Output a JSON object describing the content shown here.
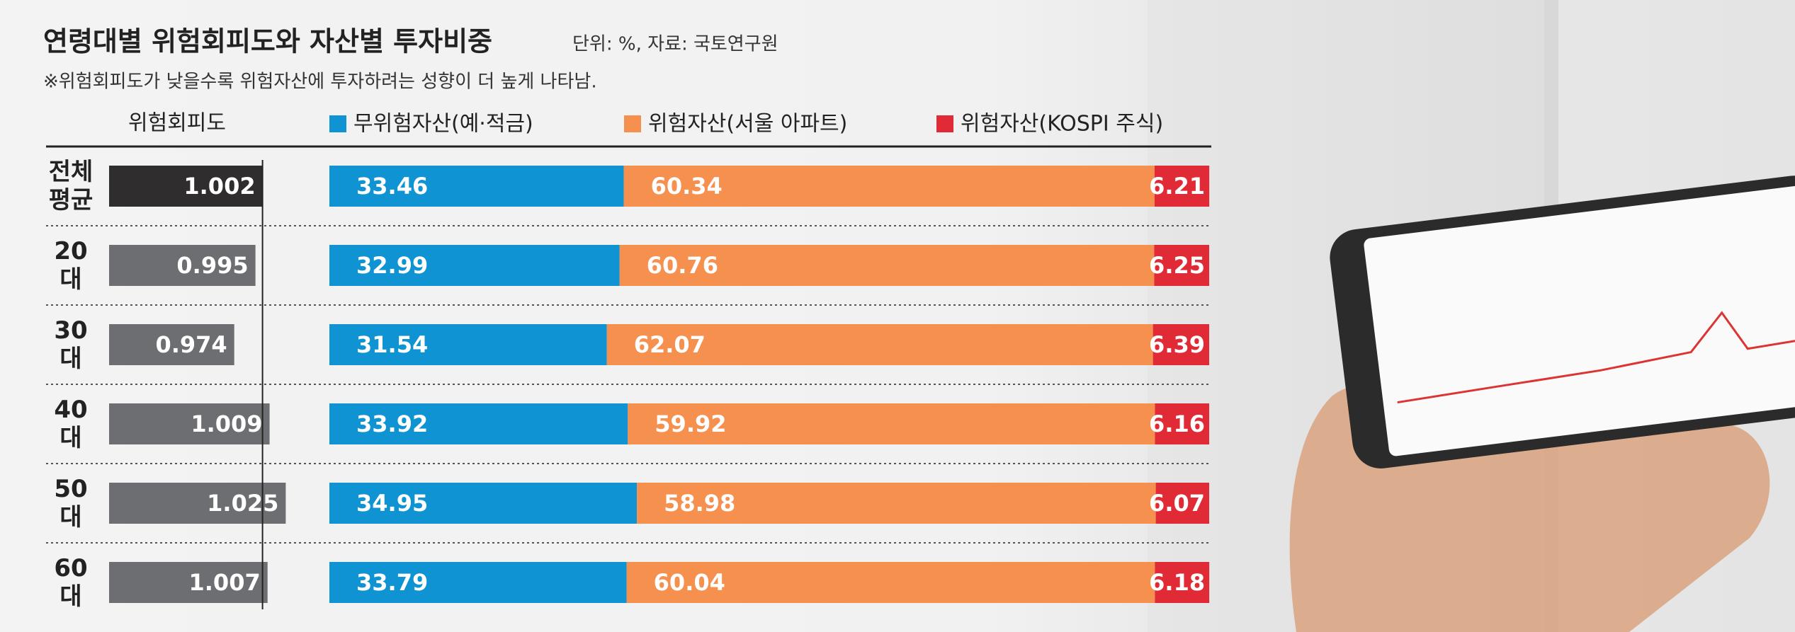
{
  "chart_data": {
    "type": "stacked_bar",
    "title": "연령대별 위험회피도와 자산별 투자비중",
    "subtitle": "단위: %, 자료: 국토연구원",
    "note": "※위험회피도가 낮을수록 위험자산에 투자하려는 성향이 더 높게 나타남.",
    "categories": [
      "전체 평균",
      "20대",
      "30대",
      "40대",
      "50대",
      "60대"
    ],
    "risk_aversion": {
      "name": "위험회피도",
      "values": [
        1.002,
        0.995,
        0.974,
        1.009,
        1.025,
        1.007
      ],
      "colors": [
        "#2f2d2e",
        "#6d6e71",
        "#6d6e71",
        "#6d6e71",
        "#6d6e71",
        "#6d6e71"
      ],
      "xlim": [
        0.85,
        1.04
      ]
    },
    "ylim": [
      0,
      100
    ],
    "series": [
      {
        "name": "무위험자산(예·적금)",
        "color": "#0f93d3",
        "values": [
          33.46,
          32.99,
          31.54,
          33.92,
          34.95,
          33.79
        ]
      },
      {
        "name": "위험자산(서울 아파트)",
        "color": "#f5904f",
        "values": [
          60.34,
          60.76,
          62.07,
          59.92,
          58.98,
          60.04
        ]
      },
      {
        "name": "위험자산(KOSPI 주식)",
        "color": "#e02a36",
        "values": [
          6.21,
          6.25,
          6.39,
          6.16,
          6.07,
          6.18
        ]
      }
    ]
  }
}
